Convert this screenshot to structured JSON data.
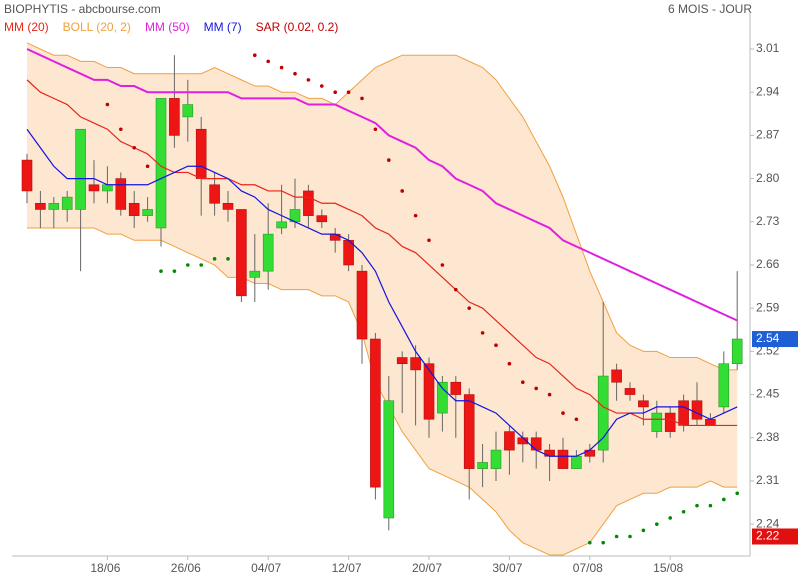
{
  "chart_data": {
    "type": "candlestick",
    "title": "BIOPHYTIS - abcbourse.com",
    "subtitle": "6 MOIS - JOUR",
    "categories": [
      null,
      null,
      null,
      null,
      null,
      null,
      "18/06",
      null,
      null,
      null,
      null,
      null,
      "26/06",
      null,
      null,
      null,
      null,
      null,
      "04/07",
      null,
      null,
      null,
      null,
      null,
      "12/07",
      null,
      null,
      null,
      null,
      null,
      "20/07",
      null,
      null,
      null,
      null,
      null,
      "30/07",
      null,
      null,
      null,
      null,
      null,
      "07/08",
      null,
      null,
      null,
      null,
      null,
      "15/08",
      null,
      null,
      null,
      null,
      null
    ],
    "open": [
      2.83,
      2.76,
      2.75,
      2.75,
      2.75,
      2.79,
      2.78,
      2.8,
      2.76,
      2.74,
      2.72,
      2.93,
      2.9,
      2.88,
      2.79,
      2.76,
      2.75,
      2.64,
      2.65,
      2.72,
      2.73,
      2.78,
      2.74,
      2.71,
      2.7,
      2.65,
      2.54,
      2.25,
      2.51,
      2.51,
      2.5,
      2.42,
      2.47,
      2.45,
      2.33,
      2.33,
      2.39,
      2.38,
      2.38,
      2.36,
      2.36,
      2.33,
      2.36,
      2.36,
      2.49,
      2.46,
      2.44,
      2.39,
      2.42,
      2.44,
      2.44,
      2.41,
      2.43,
      2.5
    ],
    "high": [
      2.84,
      2.78,
      2.77,
      2.78,
      2.88,
      2.83,
      2.82,
      2.81,
      2.78,
      2.77,
      2.93,
      3.0,
      2.96,
      2.9,
      2.81,
      2.78,
      2.75,
      2.71,
      2.76,
      2.79,
      2.8,
      2.79,
      2.75,
      2.72,
      2.71,
      2.66,
      2.55,
      2.48,
      2.52,
      2.53,
      2.51,
      2.48,
      2.48,
      2.46,
      2.37,
      2.39,
      2.4,
      2.39,
      2.39,
      2.37,
      2.38,
      2.36,
      2.37,
      2.6,
      2.5,
      2.47,
      2.45,
      2.44,
      2.43,
      2.45,
      2.47,
      2.42,
      2.52,
      2.65
    ],
    "low": [
      2.76,
      2.72,
      2.72,
      2.73,
      2.65,
      2.76,
      2.76,
      2.74,
      2.72,
      2.73,
      2.69,
      2.85,
      2.86,
      2.74,
      2.74,
      2.73,
      2.6,
      2.6,
      2.62,
      2.71,
      2.72,
      2.72,
      2.72,
      2.68,
      2.65,
      2.5,
      2.28,
      2.23,
      2.42,
      2.4,
      2.38,
      2.39,
      2.38,
      2.28,
      2.3,
      2.31,
      2.32,
      2.34,
      2.33,
      2.31,
      2.33,
      2.33,
      2.34,
      2.34,
      2.44,
      2.44,
      2.4,
      2.38,
      2.38,
      2.39,
      2.4,
      2.4,
      2.42,
      2.49
    ],
    "close": [
      2.78,
      2.75,
      2.76,
      2.77,
      2.88,
      2.78,
      2.79,
      2.75,
      2.74,
      2.75,
      2.93,
      2.87,
      2.92,
      2.8,
      2.76,
      2.75,
      2.61,
      2.65,
      2.71,
      2.73,
      2.75,
      2.74,
      2.73,
      2.7,
      2.66,
      2.54,
      2.3,
      2.44,
      2.5,
      2.49,
      2.41,
      2.47,
      2.45,
      2.33,
      2.34,
      2.36,
      2.36,
      2.37,
      2.36,
      2.35,
      2.33,
      2.35,
      2.35,
      2.48,
      2.47,
      2.45,
      2.43,
      2.42,
      2.39,
      2.4,
      2.41,
      2.4,
      2.5,
      2.54
    ],
    "up_color": "#33dd33",
    "down_color": "#ee1515",
    "series": [
      {
        "name": "MM (20)",
        "color": "#e8261a",
        "values": [
          2.96,
          2.94,
          2.93,
          2.92,
          2.9,
          2.89,
          2.88,
          2.86,
          2.85,
          2.84,
          2.82,
          2.81,
          2.81,
          2.8,
          2.8,
          2.8,
          2.79,
          2.79,
          2.78,
          2.78,
          2.77,
          2.77,
          2.76,
          2.76,
          2.75,
          2.74,
          2.72,
          2.71,
          2.69,
          2.68,
          2.66,
          2.64,
          2.62,
          2.6,
          2.59,
          2.57,
          2.55,
          2.53,
          2.51,
          2.5,
          2.48,
          2.46,
          2.45,
          2.43,
          2.42,
          2.42,
          2.41,
          2.41,
          2.41,
          2.4,
          2.4,
          2.4,
          2.4,
          2.4
        ]
      },
      {
        "name": "BOLL (20, 2)",
        "color": "#f0a040",
        "fill": "#fde7d0",
        "upper": [
          3.02,
          3.01,
          3.0,
          3.0,
          2.99,
          2.99,
          2.98,
          2.98,
          2.97,
          2.97,
          2.97,
          2.97,
          2.97,
          2.97,
          2.98,
          2.97,
          2.96,
          2.95,
          2.95,
          2.94,
          2.94,
          2.93,
          2.93,
          2.92,
          2.94,
          2.96,
          2.98,
          2.99,
          3.0,
          3.0,
          3.0,
          3.0,
          3.0,
          2.99,
          2.98,
          2.96,
          2.93,
          2.9,
          2.86,
          2.82,
          2.77,
          2.71,
          2.65,
          2.6,
          2.55,
          2.53,
          2.52,
          2.52,
          2.51,
          2.51,
          2.51,
          2.5,
          2.49,
          2.49
        ],
        "lower": [
          2.72,
          2.72,
          2.72,
          2.72,
          2.72,
          2.72,
          2.71,
          2.71,
          2.7,
          2.7,
          2.7,
          2.69,
          2.68,
          2.67,
          2.66,
          2.64,
          2.64,
          2.63,
          2.63,
          2.62,
          2.62,
          2.62,
          2.61,
          2.61,
          2.6,
          2.55,
          2.47,
          2.43,
          2.39,
          2.36,
          2.33,
          2.32,
          2.31,
          2.3,
          2.28,
          2.26,
          2.23,
          2.21,
          2.2,
          2.19,
          2.19,
          2.2,
          2.21,
          2.24,
          2.27,
          2.28,
          2.29,
          2.29,
          2.3,
          2.3,
          2.3,
          2.31,
          2.3,
          2.3
        ]
      },
      {
        "name": "MM (50)",
        "color": "#e020e0",
        "values": [
          3.01,
          3.0,
          2.99,
          2.98,
          2.97,
          2.96,
          2.96,
          2.95,
          2.95,
          2.94,
          2.94,
          2.94,
          2.94,
          2.94,
          2.94,
          2.94,
          2.93,
          2.93,
          2.93,
          2.93,
          2.93,
          2.92,
          2.92,
          2.92,
          2.91,
          2.9,
          2.89,
          2.87,
          2.86,
          2.85,
          2.83,
          2.82,
          2.8,
          2.79,
          2.78,
          2.76,
          2.75,
          2.74,
          2.73,
          2.72,
          2.7,
          2.69,
          2.68,
          2.67,
          2.66,
          2.65,
          2.64,
          2.63,
          2.62,
          2.61,
          2.6,
          2.59,
          2.58,
          2.57
        ]
      },
      {
        "name": "MM (7)",
        "color": "#1414e0",
        "values": [
          2.88,
          2.85,
          2.82,
          2.8,
          2.8,
          2.8,
          2.79,
          2.79,
          2.79,
          2.79,
          2.8,
          2.81,
          2.82,
          2.82,
          2.81,
          2.8,
          2.78,
          2.77,
          2.75,
          2.74,
          2.73,
          2.72,
          2.71,
          2.71,
          2.7,
          2.68,
          2.65,
          2.6,
          2.56,
          2.52,
          2.49,
          2.46,
          2.44,
          2.44,
          2.43,
          2.42,
          2.4,
          2.38,
          2.36,
          2.35,
          2.35,
          2.35,
          2.36,
          2.38,
          2.41,
          2.42,
          2.42,
          2.43,
          2.43,
          2.43,
          2.42,
          2.41,
          2.42,
          2.43
        ]
      },
      {
        "name": "SAR (0.02, 0.2)",
        "color": "#c00000",
        "below_color": "#008a00",
        "style": "dots",
        "values": [
          null,
          null,
          null,
          null,
          null,
          null,
          2.92,
          2.88,
          2.85,
          2.82,
          2.65,
          2.65,
          2.66,
          2.66,
          2.67,
          2.67,
          null,
          3.0,
          2.99,
          2.98,
          2.97,
          2.96,
          2.95,
          2.94,
          2.94,
          2.93,
          2.88,
          2.83,
          2.78,
          2.74,
          2.7,
          2.66,
          2.62,
          2.59,
          2.55,
          2.53,
          2.5,
          2.47,
          2.46,
          2.45,
          2.42,
          2.41,
          2.21,
          2.21,
          2.22,
          2.22,
          2.23,
          2.24,
          2.25,
          2.26,
          2.27,
          2.27,
          2.28,
          2.29
        ]
      }
    ],
    "ylim": [
      2.19,
      3.07
    ],
    "yticks": [
      2.24,
      2.31,
      2.38,
      2.45,
      2.52,
      2.59,
      2.66,
      2.73,
      {
        "value": 2.8,
        "label": "2.80"
      },
      2.87,
      2.94,
      3.01
    ],
    "price_tags": [
      {
        "value": 2.54,
        "color": "#1f5fd6"
      },
      {
        "value": 2.22,
        "color": "#e01010"
      }
    ]
  }
}
